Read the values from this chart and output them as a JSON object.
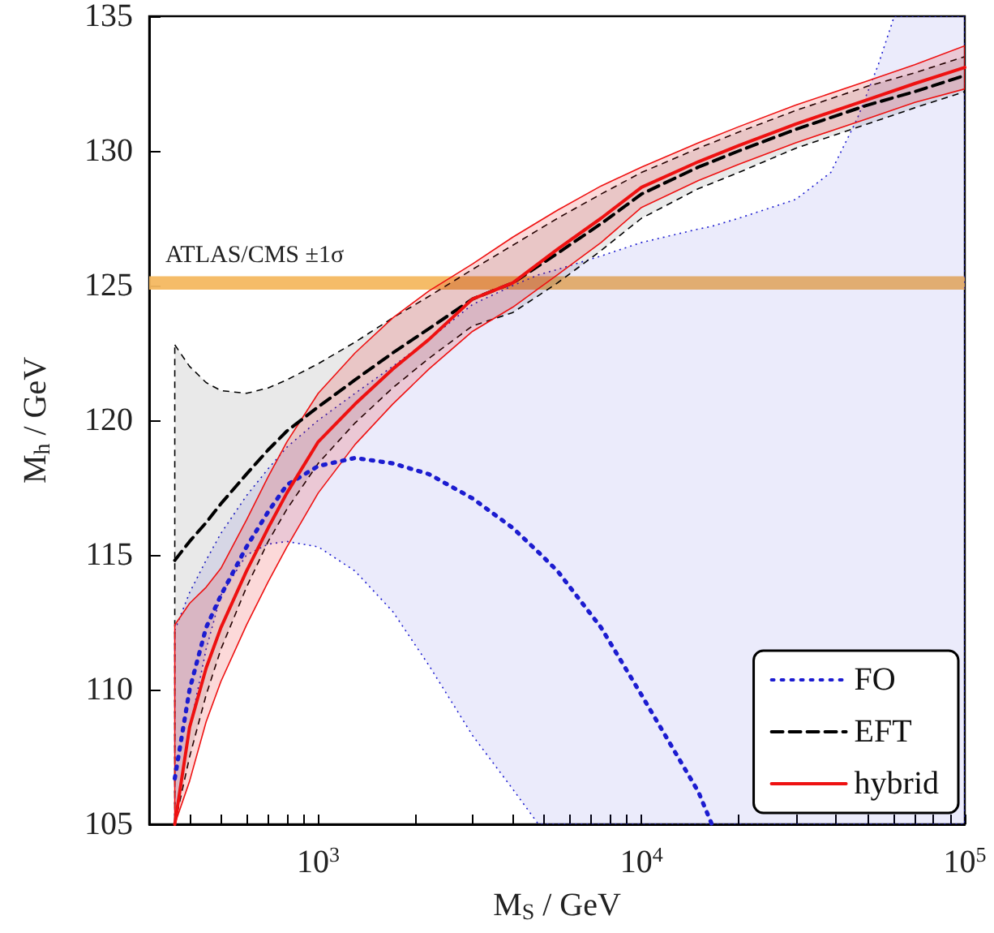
{
  "chart_data": {
    "type": "line",
    "xlabel": "M$_{S}$ / GeV",
    "ylabel": "M$_{h}$ / GeV",
    "log": "x",
    "grid": false,
    "legend": "bottom right",
    "marker": "none",
    "xlim": [
      300,
      100000
    ],
    "xticks": [
      {
        "value": 400,
        "label": null
      },
      {
        "value": 500,
        "label": null
      },
      {
        "value": 600,
        "label": null
      },
      {
        "value": 700,
        "label": null
      },
      {
        "value": 800,
        "label": null
      },
      {
        "value": 900,
        "label": null
      },
      {
        "value": 1000,
        "label": "10$^{3}$"
      },
      {
        "value": 2000,
        "label": null
      },
      {
        "value": 3000,
        "label": null
      },
      {
        "value": 4000,
        "label": null
      },
      {
        "value": 5000,
        "label": null
      },
      {
        "value": 6000,
        "label": null
      },
      {
        "value": 7000,
        "label": null
      },
      {
        "value": 8000,
        "label": null
      },
      {
        "value": 9000,
        "label": null
      },
      {
        "value": 10000,
        "label": "10$^{4}$"
      },
      {
        "value": 20000,
        "label": null
      },
      {
        "value": 30000,
        "label": null
      },
      {
        "value": 40000,
        "label": null
      },
      {
        "value": 50000,
        "label": null
      },
      {
        "value": 60000,
        "label": null
      },
      {
        "value": 70000,
        "label": null
      },
      {
        "value": 80000,
        "label": null
      },
      {
        "value": 90000,
        "label": null
      },
      {
        "value": 100000,
        "label": "10$^{5}$"
      }
    ],
    "ylim": [
      105,
      135
    ],
    "yticks": [
      105,
      110,
      115,
      120,
      125,
      130,
      135
    ],
    "x": [
      360,
      400,
      450,
      500,
      600,
      700,
      800,
      1000,
      1300,
      1700,
      2200,
      3000,
      4000,
      5500,
      7500,
      10000,
      15000,
      20000,
      30000,
      50000,
      70000,
      100000
    ],
    "bands": [
      {
        "axis": "y",
        "from": 124.85,
        "to": 125.35,
        "label": "ATLAS/CMS ±1σ",
        "color": "#f4b860"
      }
    ],
    "series": [
      {
        "name": "FO",
        "color": "#1c1cd0",
        "line_style": "dotted",
        "x": [
          360,
          400,
          450,
          500,
          600,
          700,
          800,
          1000,
          1300,
          1700,
          2200,
          3000,
          4000,
          4800,
          5500,
          7500,
          10000,
          15000,
          16500,
          20000,
          30000,
          38500,
          46500,
          54000,
          60500,
          70000,
          100000
        ],
        "values": [
          106.7,
          110.0,
          112.3,
          113.5,
          115.3,
          116.6,
          117.6,
          118.3,
          118.6,
          118.4,
          118.0,
          117.1,
          116.0,
          115.1,
          114.4,
          112.3,
          109.8,
          106.2,
          105.0,
          null,
          null,
          null,
          null,
          null,
          null,
          null,
          null
        ],
        "lower": [
          105,
          108.5,
          111.5,
          113.5,
          115.0,
          115.4,
          115.5,
          115.3,
          114.4,
          112.9,
          110.9,
          108.3,
          106.3,
          105,
          105,
          105,
          105,
          105,
          105,
          105,
          105,
          105,
          105,
          105,
          105,
          105,
          105
        ],
        "upper": [
          112.2,
          113.6,
          114.8,
          115.8,
          117.2,
          118.2,
          119.0,
          120.0,
          121.0,
          122.0,
          123.0,
          124.3,
          125.0,
          125.4,
          125.6,
          126.1,
          126.6,
          127.1,
          127.2,
          127.5,
          128.2,
          129.2,
          131.2,
          133.2,
          135,
          135,
          135
        ]
      },
      {
        "name": "EFT",
        "color": "#000000",
        "line_style": "dashed",
        "values": [
          114.8,
          115.5,
          116.2,
          116.9,
          118.0,
          118.9,
          119.6,
          120.5,
          121.5,
          122.5,
          123.4,
          124.5,
          125.1,
          126.2,
          127.3,
          128.4,
          129.4,
          130.0,
          130.8,
          131.7,
          132.2,
          132.8
        ],
        "lower": [
          105,
          107.5,
          109.8,
          111.5,
          113.8,
          115.5,
          116.7,
          118.4,
          119.9,
          121.2,
          122.3,
          123.5,
          124.0,
          125.1,
          126.3,
          127.5,
          128.6,
          129.2,
          130.1,
          131.0,
          131.6,
          132.2
        ],
        "upper": [
          122.8,
          122.0,
          121.4,
          121.1,
          121.0,
          121.2,
          121.5,
          122.1,
          122.9,
          123.8,
          124.6,
          125.6,
          126.5,
          127.5,
          128.4,
          129.2,
          130.1,
          130.7,
          131.5,
          132.4,
          132.9,
          133.5
        ]
      },
      {
        "name": "hybrid",
        "color": "#ee1111",
        "line_style": "solid",
        "values": [
          105,
          108.6,
          110.8,
          112.3,
          114.4,
          116.0,
          117.3,
          119.2,
          120.6,
          121.9,
          123.0,
          124.5,
          125.1,
          126.35,
          127.5,
          128.65,
          129.6,
          130.2,
          131.0,
          131.9,
          132.5,
          133.1
        ],
        "lower": [
          105,
          106.6,
          108.8,
          110.3,
          112.4,
          114.0,
          115.3,
          117.3,
          119.1,
          120.6,
          121.9,
          123.3,
          124.2,
          125.4,
          126.6,
          127.9,
          128.9,
          129.5,
          130.3,
          131.2,
          131.8,
          132.3
        ],
        "upper": [
          112.4,
          113.2,
          113.8,
          114.5,
          116.3,
          117.9,
          119.2,
          121.0,
          122.5,
          123.8,
          124.8,
          125.8,
          126.8,
          127.8,
          128.7,
          129.4,
          130.3,
          130.9,
          131.7,
          132.6,
          133.2,
          133.9
        ]
      }
    ]
  }
}
